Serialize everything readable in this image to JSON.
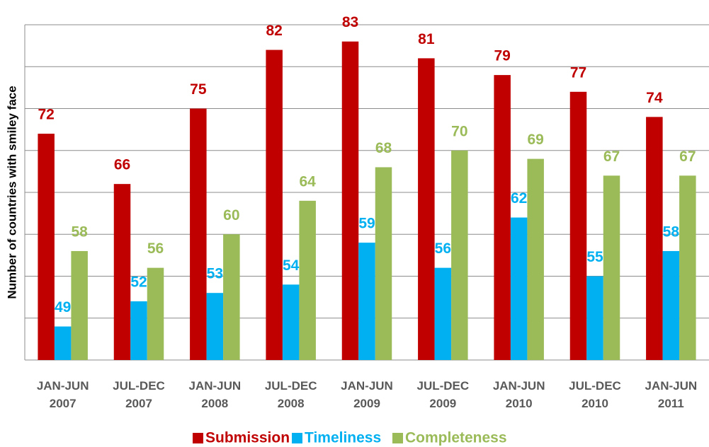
{
  "chart_data": {
    "type": "bar",
    "y_label": "Number of countries with smiley face",
    "categories": [
      [
        "JAN-JUN",
        "2007"
      ],
      [
        "JUL-DEC",
        "2007"
      ],
      [
        "JAN-JUN",
        "2008"
      ],
      [
        "JUL-DEC",
        "2008"
      ],
      [
        "JAN-JUN",
        "2009"
      ],
      [
        "JUL-DEC",
        "2009"
      ],
      [
        "JAN-JUN",
        "2010"
      ],
      [
        "JUL-DEC",
        "2010"
      ],
      [
        "JAN-JUN",
        "2011"
      ]
    ],
    "series": [
      {
        "name": "Submission",
        "color": "#c00000",
        "values": [
          72,
          66,
          75,
          82,
          83,
          81,
          79,
          77,
          74
        ]
      },
      {
        "name": "Timeliness",
        "color": "#00b0f0",
        "values": [
          49,
          52,
          53,
          54,
          59,
          56,
          62,
          55,
          58
        ]
      },
      {
        "name": "Completeness",
        "color": "#9bbb59",
        "values": [
          58,
          56,
          60,
          64,
          68,
          70,
          69,
          67,
          67
        ]
      }
    ],
    "ylim": [
      45,
      85
    ],
    "yticks": [
      45,
      50,
      55,
      60,
      65,
      70,
      75,
      80,
      85
    ],
    "grid": true,
    "legend": "bottom"
  }
}
